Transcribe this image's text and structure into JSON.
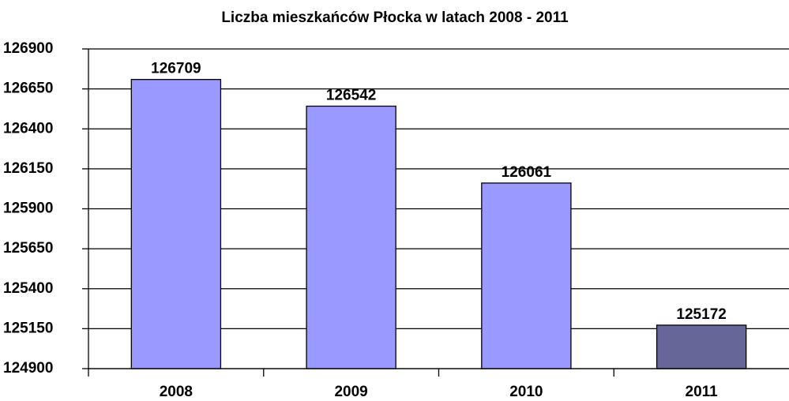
{
  "chart_data": {
    "type": "bar",
    "title": "Liczba mieszkańców Płocka w latach 2008 - 2011",
    "categories": [
      "2008",
      "2009",
      "2010",
      "2011"
    ],
    "values": [
      126709,
      126542,
      126061,
      125172
    ],
    "colors": [
      "#9999ff",
      "#9999ff",
      "#9999ff",
      "#666699"
    ],
    "ylim": [
      124900,
      126900
    ],
    "yticks": [
      124900,
      125150,
      125400,
      125650,
      125900,
      126150,
      126400,
      126650,
      126900
    ],
    "grid": true
  }
}
